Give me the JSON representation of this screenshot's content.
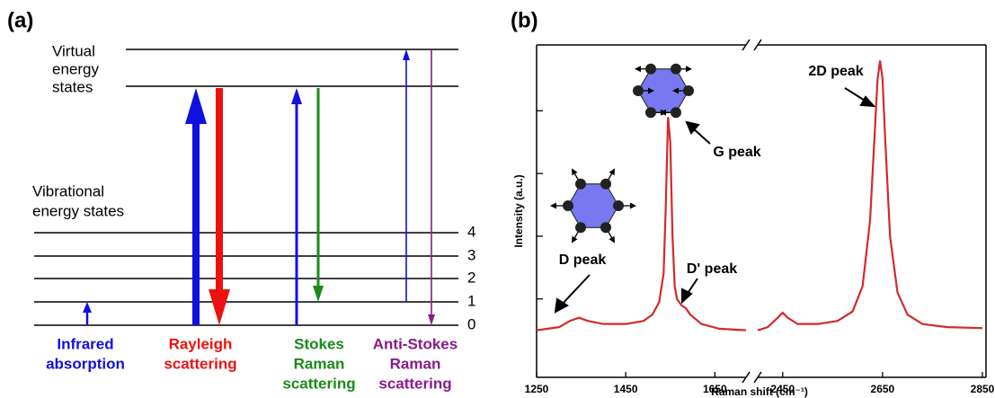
{
  "diagram": {
    "label": "(a)",
    "virtual_label": [
      "Virtual",
      "energy",
      "states"
    ],
    "vibrational_label": [
      "Vibrational",
      "energy states"
    ],
    "levels": [
      "4",
      "3",
      "2",
      "1",
      "0"
    ],
    "processes": [
      {
        "label": [
          "Infrared",
          "absorption"
        ]
      },
      {
        "label": [
          "Rayleigh",
          "scattering"
        ]
      },
      {
        "label": [
          "Stokes",
          "Raman",
          "scattering"
        ]
      },
      {
        "label": [
          "Anti-Stokes",
          "Raman",
          "scattering"
        ]
      }
    ]
  },
  "chart_data": {
    "type": "line",
    "panel_label": "(b)",
    "ylabel": "Intensity (a.u.)",
    "xlabel": "Raman shift (cm⁻¹)",
    "x_segments": [
      {
        "xlim": [
          1250,
          1720
        ],
        "xticks": [
          1250,
          1450,
          1650
        ]
      },
      {
        "xlim": [
          2400,
          2850
        ],
        "xticks": [
          2450,
          2650,
          2850
        ]
      }
    ],
    "ylim": [
      -5,
      101
    ],
    "yticks": [
      20,
      40,
      60,
      80
    ],
    "series": [
      {
        "color": "#d42a2a",
        "x": [
          1250,
          1300,
          1325,
          1345,
          1365,
          1400,
          1450,
          1490,
          1510,
          1525,
          1535,
          1540,
          1545,
          1550,
          1555,
          1560,
          1565,
          1575,
          1585,
          1595,
          1620,
          1660,
          1720
        ],
        "values": [
          10,
          11,
          13,
          14,
          13,
          12,
          12,
          13,
          15,
          19,
          28,
          50,
          78,
          70,
          40,
          24,
          20,
          18,
          17,
          15,
          12,
          10.5,
          10
        ]
      },
      {
        "color": "#d42a2a",
        "x": [
          2400,
          2420,
          2440,
          2450,
          2460,
          2480,
          2520,
          2560,
          2590,
          2610,
          2625,
          2635,
          2640,
          2645,
          2650,
          2655,
          2665,
          2680,
          2700,
          2730,
          2780,
          2850
        ],
        "values": [
          10,
          11,
          14,
          15.6,
          14,
          12,
          12,
          13,
          16,
          24,
          45,
          75,
          90,
          96,
          90,
          72,
          40,
          22,
          15,
          12,
          11,
          10.7
        ]
      }
    ],
    "annotations": [
      "D peak",
      "G peak",
      "D' peak",
      "2D peak"
    ]
  }
}
